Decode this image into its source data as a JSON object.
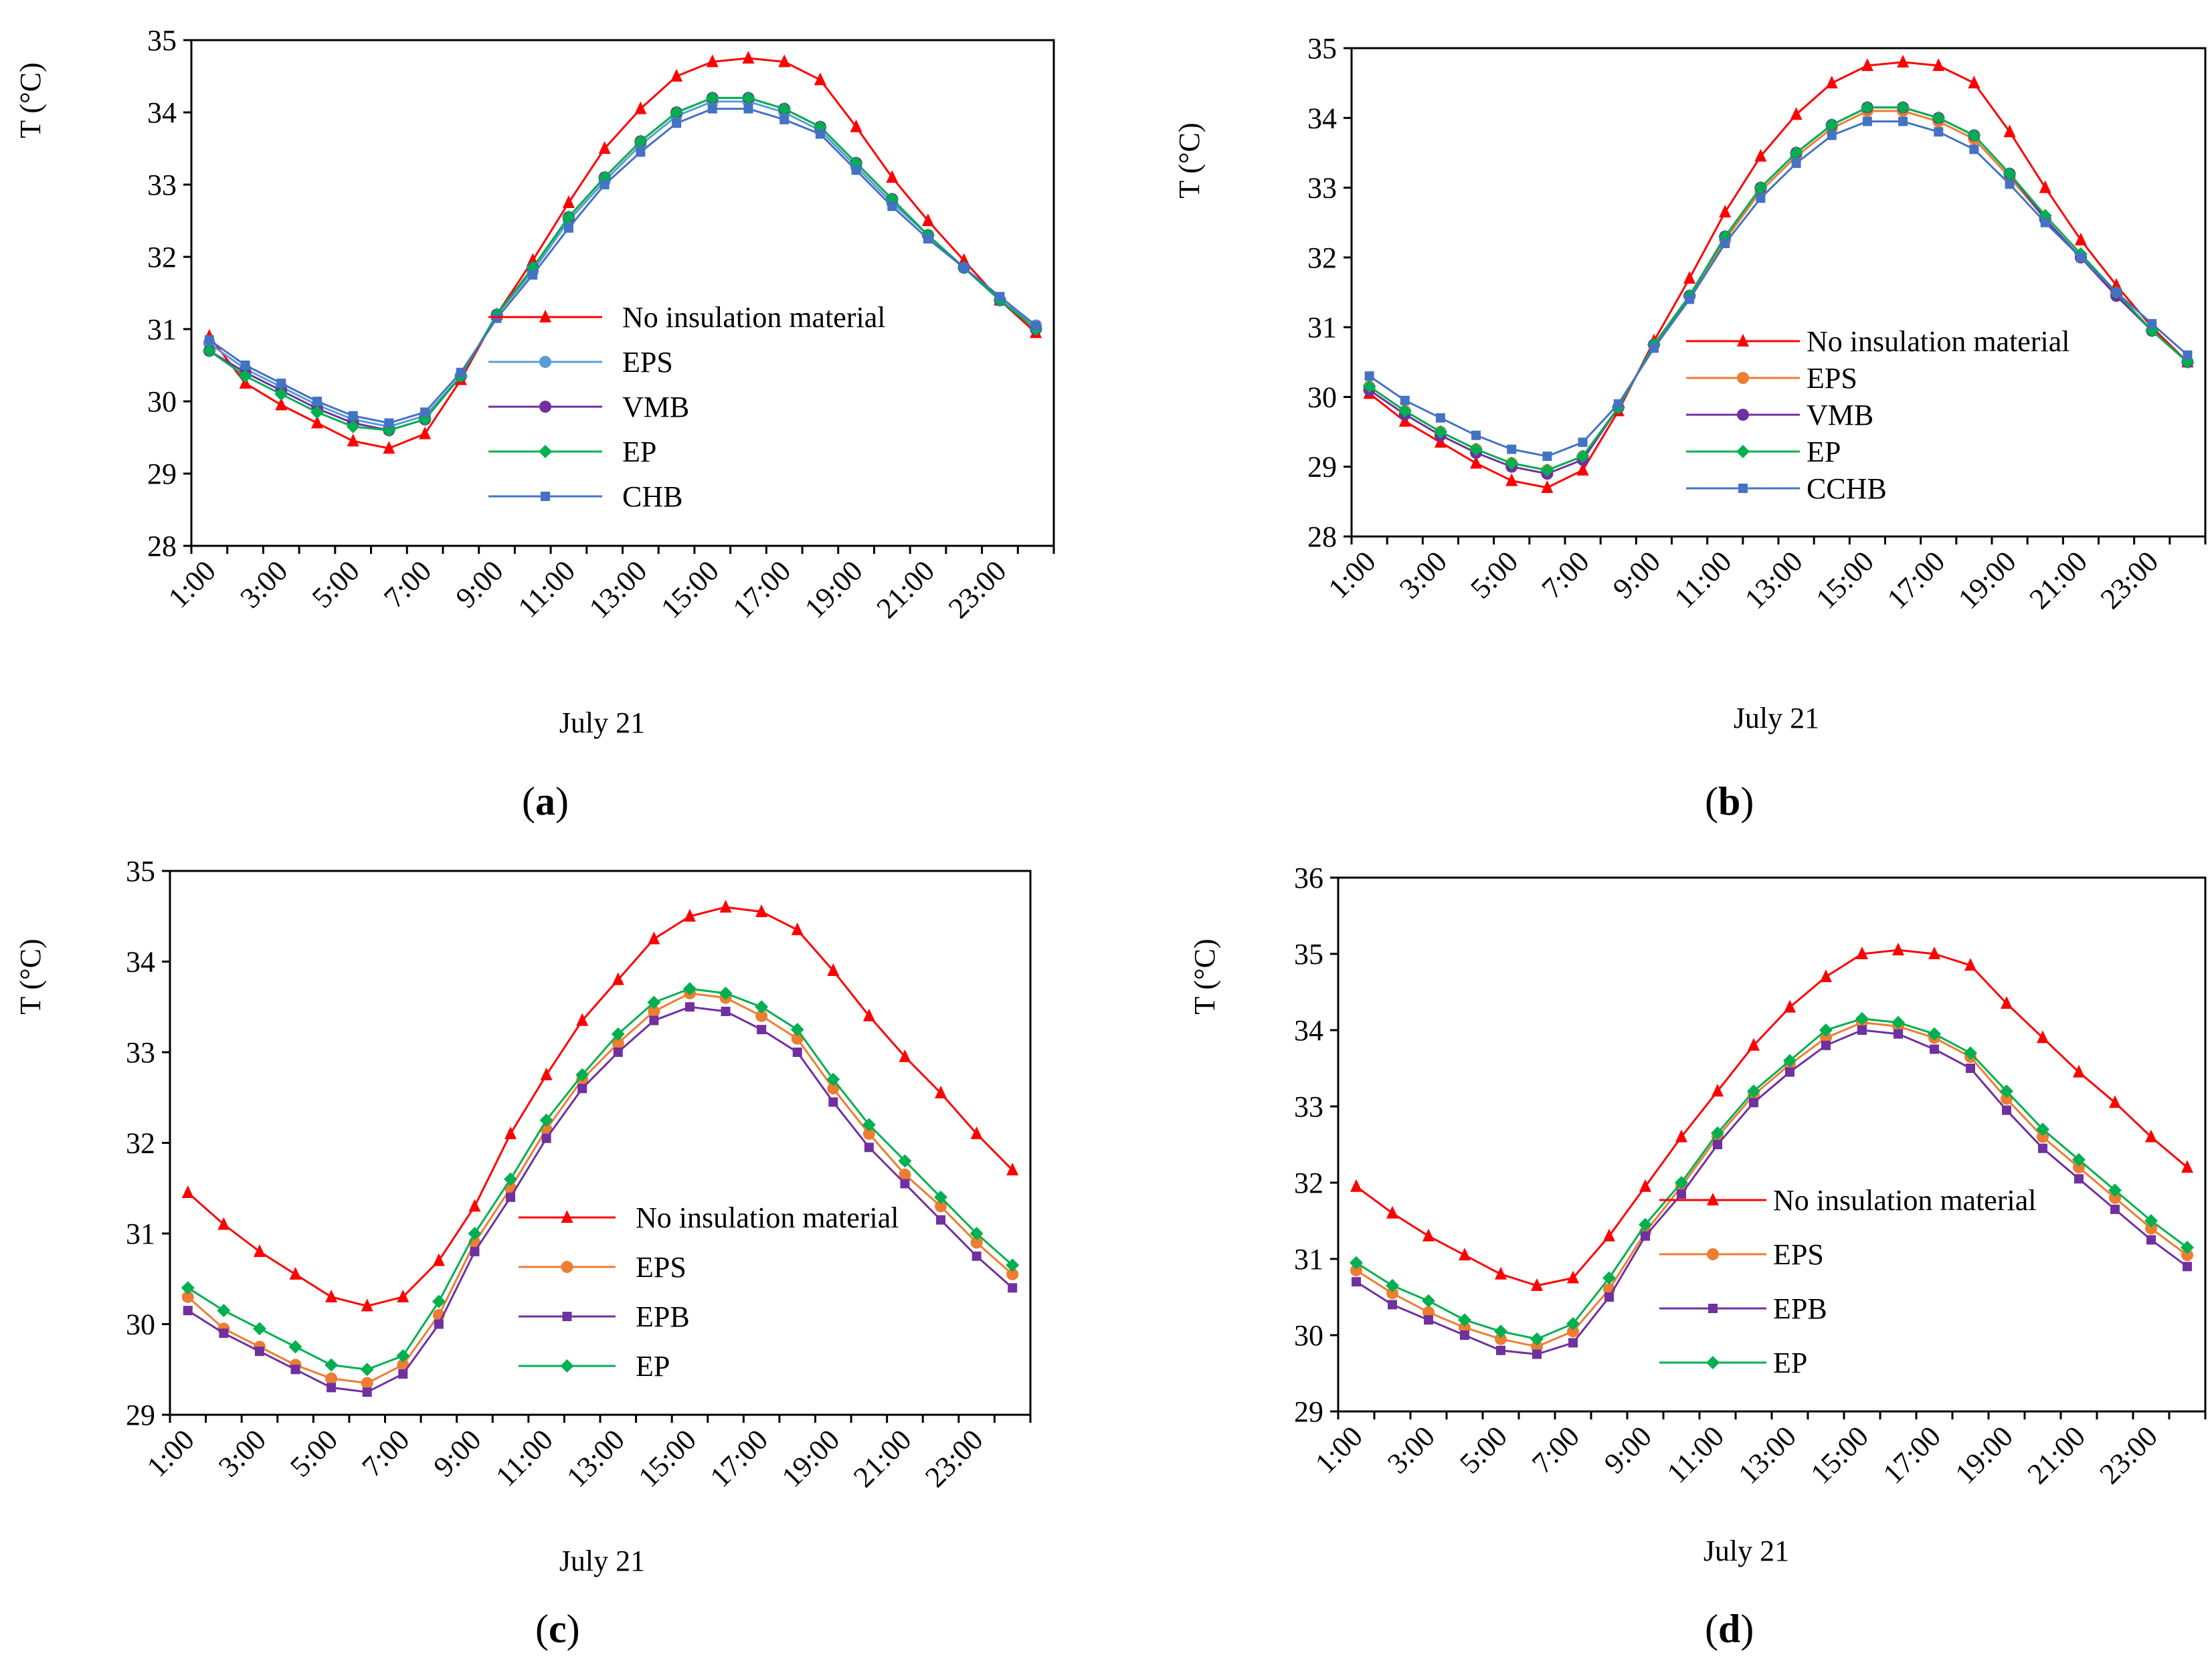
{
  "figure": {
    "panels": [
      "a",
      "b",
      "c",
      "d"
    ]
  },
  "chart_data": [
    {
      "id": "a",
      "type": "line",
      "panel_label": "a",
      "title": "",
      "xlabel": "July 21",
      "ylabel": "T (°C)",
      "ylim": [
        28,
        35
      ],
      "yticks": [
        28,
        29,
        30,
        31,
        32,
        33,
        34,
        35
      ],
      "x": [
        "1:00",
        "2:00",
        "3:00",
        "4:00",
        "5:00",
        "6:00",
        "7:00",
        "8:00",
        "9:00",
        "10:00",
        "11:00",
        "12:00",
        "13:00",
        "14:00",
        "15:00",
        "16:00",
        "17:00",
        "18:00",
        "19:00",
        "20:00",
        "21:00",
        "22:00",
        "23:00",
        "24:00"
      ],
      "xtick_labels": [
        "1:00",
        "3:00",
        "5:00",
        "7:00",
        "9:00",
        "11:00",
        "13:00",
        "15:00",
        "17:00",
        "19:00",
        "21:00",
        "23:00"
      ],
      "legend_position": "center-right",
      "series": [
        {
          "name": "No insulation material",
          "color": "#ff0000",
          "marker": "triangle",
          "values": [
            30.9,
            30.25,
            29.95,
            29.7,
            29.45,
            29.35,
            29.55,
            30.3,
            31.2,
            31.95,
            32.75,
            33.5,
            34.05,
            34.5,
            34.7,
            34.75,
            34.7,
            34.45,
            33.8,
            33.1,
            32.5,
            31.95,
            31.4,
            30.95
          ]
        },
        {
          "name": "EPS",
          "color": "#5b9bd5",
          "marker": "circle",
          "values": [
            30.8,
            30.45,
            30.2,
            29.95,
            29.75,
            29.65,
            29.8,
            30.35,
            31.2,
            31.8,
            32.5,
            33.05,
            33.55,
            33.95,
            34.15,
            34.15,
            34.0,
            33.75,
            33.25,
            32.75,
            32.3,
            31.85,
            31.4,
            31.05
          ]
        },
        {
          "name": "VMB",
          "color": "#7030a0",
          "marker": "circle",
          "values": [
            30.7,
            30.4,
            30.15,
            29.9,
            29.7,
            29.6,
            29.75,
            30.35,
            31.2,
            31.85,
            32.55,
            33.1,
            33.6,
            34.0,
            34.2,
            34.2,
            34.05,
            33.8,
            33.3,
            32.8,
            32.3,
            31.85,
            31.4,
            31.0
          ]
        },
        {
          "name": "EP",
          "color": "#00b050",
          "marker": "diamond",
          "values": [
            30.7,
            30.35,
            30.1,
            29.85,
            29.65,
            29.6,
            29.75,
            30.35,
            31.2,
            31.85,
            32.55,
            33.1,
            33.6,
            34.0,
            34.2,
            34.2,
            34.05,
            33.8,
            33.3,
            32.8,
            32.3,
            31.85,
            31.4,
            31.0
          ]
        },
        {
          "name": "CHB",
          "color": "#4472c4",
          "marker": "x",
          "values": [
            30.85,
            30.5,
            30.25,
            30.0,
            29.8,
            29.7,
            29.85,
            30.4,
            31.15,
            31.75,
            32.4,
            33.0,
            33.45,
            33.85,
            34.05,
            34.05,
            33.9,
            33.7,
            33.2,
            32.7,
            32.25,
            31.85,
            31.45,
            31.05
          ]
        }
      ]
    },
    {
      "id": "b",
      "type": "line",
      "panel_label": "b",
      "title": "",
      "xlabel": "July 21",
      "ylabel": "T (°C)",
      "ylim": [
        28,
        35
      ],
      "yticks": [
        28,
        29,
        30,
        31,
        32,
        33,
        34,
        35
      ],
      "x": [
        "1:00",
        "2:00",
        "3:00",
        "4:00",
        "5:00",
        "6:00",
        "7:00",
        "8:00",
        "9:00",
        "10:00",
        "11:00",
        "12:00",
        "13:00",
        "14:00",
        "15:00",
        "16:00",
        "17:00",
        "18:00",
        "19:00",
        "20:00",
        "21:00",
        "22:00",
        "23:00",
        "24:00"
      ],
      "xtick_labels": [
        "1:00",
        "3:00",
        "5:00",
        "7:00",
        "9:00",
        "11:00",
        "13:00",
        "15:00",
        "17:00",
        "19:00",
        "21:00",
        "23:00"
      ],
      "legend_position": "center-right",
      "series": [
        {
          "name": "No insulation material",
          "color": "#ff0000",
          "marker": "triangle",
          "values": [
            30.05,
            29.65,
            29.35,
            29.05,
            28.8,
            28.7,
            28.95,
            29.8,
            30.8,
            31.7,
            32.65,
            33.45,
            34.05,
            34.5,
            34.75,
            34.8,
            34.75,
            34.5,
            33.8,
            33.0,
            32.25,
            31.6,
            31.0,
            30.5
          ]
        },
        {
          "name": "EPS",
          "color": "#ed7d31",
          "marker": "circle",
          "values": [
            30.15,
            29.8,
            29.5,
            29.25,
            29.05,
            28.95,
            29.15,
            29.85,
            30.75,
            31.45,
            32.25,
            32.95,
            33.45,
            33.85,
            34.1,
            34.1,
            33.95,
            33.7,
            33.15,
            32.55,
            32.0,
            31.45,
            30.95,
            30.5
          ]
        },
        {
          "name": "VMB",
          "color": "#7030a0",
          "marker": "circle",
          "values": [
            30.1,
            29.75,
            29.45,
            29.2,
            29.0,
            28.9,
            29.1,
            29.85,
            30.75,
            31.45,
            32.3,
            33.0,
            33.5,
            33.9,
            34.15,
            34.15,
            34.0,
            33.75,
            33.2,
            32.55,
            32.0,
            31.45,
            30.95,
            30.5
          ]
        },
        {
          "name": "EP",
          "color": "#00b050",
          "marker": "diamond",
          "values": [
            30.15,
            29.8,
            29.5,
            29.25,
            29.05,
            28.95,
            29.15,
            29.85,
            30.75,
            31.45,
            32.3,
            33.0,
            33.5,
            33.9,
            34.15,
            34.15,
            34.0,
            33.75,
            33.2,
            32.6,
            32.05,
            31.5,
            30.95,
            30.5
          ]
        },
        {
          "name": "CCHB",
          "color": "#4472c4",
          "marker": "x",
          "values": [
            30.3,
            29.95,
            29.7,
            29.45,
            29.25,
            29.15,
            29.35,
            29.9,
            30.7,
            31.4,
            32.2,
            32.85,
            33.35,
            33.75,
            33.95,
            33.95,
            33.8,
            33.55,
            33.05,
            32.5,
            32.0,
            31.5,
            31.05,
            30.6
          ]
        }
      ]
    },
    {
      "id": "c",
      "type": "line",
      "panel_label": "c",
      "title": "",
      "xlabel": "July 21",
      "ylabel": "T (°C)",
      "ylim": [
        29,
        35
      ],
      "yticks": [
        29,
        30,
        31,
        32,
        33,
        34,
        35
      ],
      "x": [
        "1:00",
        "2:00",
        "3:00",
        "4:00",
        "5:00",
        "6:00",
        "7:00",
        "8:00",
        "9:00",
        "10:00",
        "11:00",
        "12:00",
        "13:00",
        "14:00",
        "15:00",
        "16:00",
        "17:00",
        "18:00",
        "19:00",
        "20:00",
        "21:00",
        "22:00",
        "23:00",
        "24:00"
      ],
      "xtick_labels": [
        "1:00",
        "3:00",
        "5:00",
        "7:00",
        "9:00",
        "11:00",
        "13:00",
        "15:00",
        "17:00",
        "19:00",
        "21:00",
        "23:00"
      ],
      "legend_position": "center-right",
      "series": [
        {
          "name": "No insulation material",
          "color": "#ff0000",
          "marker": "triangle",
          "values": [
            31.45,
            31.1,
            30.8,
            30.55,
            30.3,
            30.2,
            30.3,
            30.7,
            31.3,
            32.1,
            32.75,
            33.35,
            33.8,
            34.25,
            34.5,
            34.6,
            34.55,
            34.35,
            33.9,
            33.4,
            32.95,
            32.55,
            32.1,
            31.7
          ]
        },
        {
          "name": "EPS",
          "color": "#ed7d31",
          "marker": "circle",
          "values": [
            30.3,
            29.95,
            29.75,
            29.55,
            29.4,
            29.35,
            29.55,
            30.1,
            30.9,
            31.5,
            32.15,
            32.7,
            33.1,
            33.45,
            33.65,
            33.6,
            33.4,
            33.15,
            32.6,
            32.1,
            31.65,
            31.3,
            30.9,
            30.55
          ]
        },
        {
          "name": "EPB",
          "color": "#7030a0",
          "marker": "x",
          "values": [
            30.15,
            29.9,
            29.7,
            29.5,
            29.3,
            29.25,
            29.45,
            30.0,
            30.8,
            31.4,
            32.05,
            32.6,
            33.0,
            33.35,
            33.5,
            33.45,
            33.25,
            33.0,
            32.45,
            31.95,
            31.55,
            31.15,
            30.75,
            30.4
          ]
        },
        {
          "name": "EP",
          "color": "#00b050",
          "marker": "diamond",
          "values": [
            30.4,
            30.15,
            29.95,
            29.75,
            29.55,
            29.5,
            29.65,
            30.25,
            31.0,
            31.6,
            32.25,
            32.75,
            33.2,
            33.55,
            33.7,
            33.65,
            33.5,
            33.25,
            32.7,
            32.2,
            31.8,
            31.4,
            31.0,
            30.65
          ]
        }
      ]
    },
    {
      "id": "d",
      "type": "line",
      "panel_label": "d",
      "title": "",
      "xlabel": "July 21",
      "ylabel": "T (°C)",
      "ylim": [
        29,
        36
      ],
      "yticks": [
        29,
        30,
        31,
        32,
        33,
        34,
        35,
        36
      ],
      "x": [
        "1:00",
        "2:00",
        "3:00",
        "4:00",
        "5:00",
        "6:00",
        "7:00",
        "8:00",
        "9:00",
        "10:00",
        "11:00",
        "12:00",
        "13:00",
        "14:00",
        "15:00",
        "16:00",
        "17:00",
        "18:00",
        "19:00",
        "20:00",
        "21:00",
        "22:00",
        "23:00",
        "24:00"
      ],
      "xtick_labels": [
        "1:00",
        "3:00",
        "5:00",
        "7:00",
        "9:00",
        "11:00",
        "13:00",
        "15:00",
        "17:00",
        "19:00",
        "21:00",
        "23:00"
      ],
      "legend_position": "center-right",
      "series": [
        {
          "name": "No insulation material",
          "color": "#ff0000",
          "marker": "triangle",
          "values": [
            31.95,
            31.6,
            31.3,
            31.05,
            30.8,
            30.65,
            30.75,
            31.3,
            31.95,
            32.6,
            33.2,
            33.8,
            34.3,
            34.7,
            35.0,
            35.05,
            35.0,
            34.85,
            34.35,
            33.9,
            33.45,
            33.05,
            32.6,
            32.2
          ]
        },
        {
          "name": "EPS",
          "color": "#ed7d31",
          "marker": "circle",
          "values": [
            30.85,
            30.55,
            30.3,
            30.1,
            29.95,
            29.85,
            30.05,
            30.6,
            31.35,
            31.95,
            32.6,
            33.15,
            33.55,
            33.9,
            34.1,
            34.05,
            33.9,
            33.65,
            33.1,
            32.6,
            32.2,
            31.8,
            31.4,
            31.05
          ]
        },
        {
          "name": "EPB",
          "color": "#7030a0",
          "marker": "x",
          "values": [
            30.7,
            30.4,
            30.2,
            30.0,
            29.8,
            29.75,
            29.9,
            30.5,
            31.3,
            31.85,
            32.5,
            33.05,
            33.45,
            33.8,
            34.0,
            33.95,
            33.75,
            33.5,
            32.95,
            32.45,
            32.05,
            31.65,
            31.25,
            30.9
          ]
        },
        {
          "name": "EP",
          "color": "#00b050",
          "marker": "diamond",
          "values": [
            30.95,
            30.65,
            30.45,
            30.2,
            30.05,
            29.95,
            30.15,
            30.75,
            31.45,
            32.0,
            32.65,
            33.2,
            33.6,
            34.0,
            34.15,
            34.1,
            33.95,
            33.7,
            33.2,
            32.7,
            32.3,
            31.9,
            31.5,
            31.15
          ]
        }
      ]
    }
  ]
}
